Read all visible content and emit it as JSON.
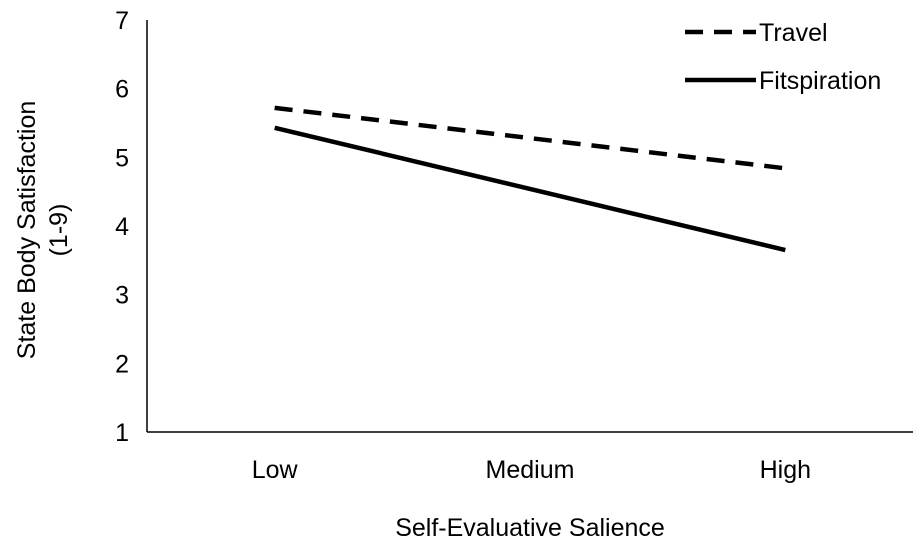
{
  "chart_data": {
    "type": "line",
    "categories": [
      "Low",
      "Medium",
      "High"
    ],
    "series": [
      {
        "name": "Travel",
        "values": [
          5.72,
          5.28,
          4.84
        ],
        "line_style": "dashed",
        "color": "#000000"
      },
      {
        "name": "Fitspiration",
        "values": [
          5.43,
          4.54,
          3.65
        ],
        "line_style": "solid",
        "color": "#000000"
      }
    ],
    "xlabel": "Self-Evaluative Salience",
    "ylabel_line1": "State Body Satisfaction",
    "ylabel_line2": "(1-9)",
    "ylim": [
      1,
      7
    ],
    "yticks": [
      "1",
      "2",
      "3",
      "4",
      "5",
      "6",
      "7"
    ],
    "grid": false,
    "legend_position": "top-right"
  }
}
